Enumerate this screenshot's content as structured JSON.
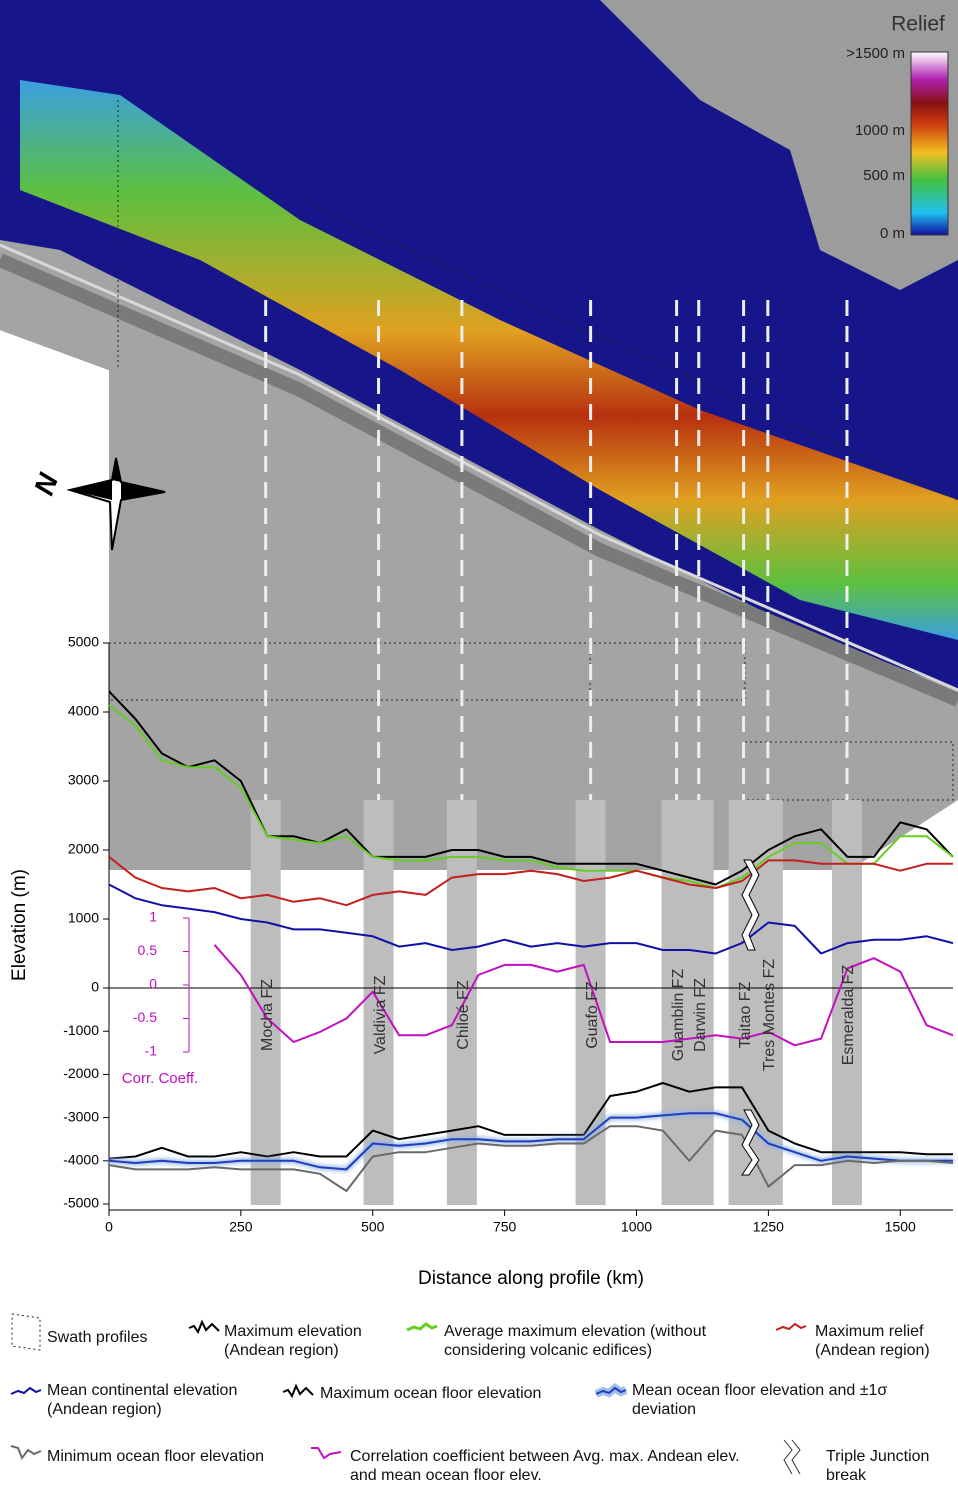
{
  "map": {
    "title": "Relief",
    "colorbar_labels": [
      ">1500 m",
      "1000 m",
      "500 m",
      "0 m"
    ],
    "north": "N"
  },
  "legend_extra": [
    "Swath profiles",
    "Triple Junction break"
  ],
  "chart_data": [
    {
      "type": "line",
      "ylabel": "Elevation (m)",
      "y2label": "Corr. Coeff.",
      "xlim": [
        0,
        1600
      ],
      "ylim": [
        0,
        5000
      ],
      "yticks": [
        0,
        1000,
        2000,
        3000,
        4000,
        5000
      ],
      "y2lim": [
        -1,
        1
      ],
      "y2ticks": [
        1,
        0.5,
        0,
        -0.5,
        -1
      ],
      "x": [
        0,
        50,
        100,
        150,
        200,
        250,
        300,
        350,
        400,
        450,
        500,
        550,
        600,
        650,
        700,
        750,
        800,
        850,
        900,
        950,
        1000,
        1050,
        1100,
        1150,
        1200,
        1250,
        1300,
        1350,
        1400,
        1450,
        1500,
        1550,
        1600
      ],
      "series": [
        {
          "name": "Maximum elevation (Andean region)",
          "color": "#000000",
          "values": [
            4300,
            3900,
            3400,
            3200,
            3300,
            3000,
            2200,
            2200,
            2100,
            2300,
            1900,
            1900,
            1900,
            2000,
            2000,
            1900,
            1900,
            1800,
            1800,
            1800,
            1800,
            1700,
            1600,
            1500,
            1700,
            2000,
            2200,
            2300,
            1900,
            1900,
            2400,
            2300,
            1900
          ]
        },
        {
          "name": "Average maximum elevation (without considering volcanic edifices)",
          "color": "#66cc22",
          "values": [
            4100,
            3800,
            3300,
            3200,
            3200,
            2900,
            2200,
            2150,
            2100,
            2200,
            1900,
            1850,
            1850,
            1900,
            1900,
            1850,
            1850,
            1750,
            1700,
            1700,
            1700,
            1600,
            1550,
            1450,
            1600,
            1900,
            2100,
            2100,
            1800,
            1800,
            2200,
            2200,
            1900
          ]
        },
        {
          "name": "Maximum relief (Andean region)",
          "color": "#c41e1e",
          "values": [
            1900,
            1600,
            1450,
            1400,
            1450,
            1300,
            1350,
            1250,
            1300,
            1200,
            1350,
            1400,
            1350,
            1600,
            1650,
            1650,
            1700,
            1650,
            1550,
            1600,
            1700,
            1600,
            1500,
            1450,
            1550,
            1850,
            1850,
            1800,
            1800,
            1800,
            1700,
            1800,
            1800
          ]
        },
        {
          "name": "Mean continental elevation (Andean region)",
          "color": "#1010a8",
          "values": [
            1500,
            1300,
            1200,
            1150,
            1100,
            1000,
            950,
            850,
            850,
            800,
            750,
            600,
            650,
            550,
            600,
            700,
            600,
            650,
            600,
            650,
            650,
            550,
            550,
            500,
            650,
            950,
            900,
            500,
            650,
            700,
            700,
            750,
            650
          ]
        },
        {
          "name": "Correlation coefficient between Avg. max. Andean elev. and mean ocean floor elev.",
          "color": "#c010c0",
          "axis": "y2",
          "values": [
            null,
            null,
            null,
            null,
            0.6,
            0.15,
            -0.5,
            -0.85,
            -0.7,
            -0.5,
            -0.1,
            -0.75,
            -0.75,
            -0.6,
            0.15,
            0.3,
            0.3,
            0.2,
            0.3,
            -0.85,
            -0.85,
            -0.85,
            -0.8,
            -0.75,
            -0.8,
            -0.7,
            -0.9,
            -0.8,
            0.25,
            0.4,
            0.2,
            -0.6,
            -0.75
          ]
        }
      ]
    },
    {
      "type": "line",
      "xlabel": "Distance along profile (km)",
      "xlim": [
        0,
        1600
      ],
      "xticks": [
        0,
        250,
        500,
        750,
        1000,
        1250,
        1500
      ],
      "ylim": [
        -5000,
        0
      ],
      "yticks": [
        -1000,
        -2000,
        -3000,
        -4000,
        -5000
      ],
      "x": [
        0,
        50,
        100,
        150,
        200,
        250,
        300,
        350,
        400,
        450,
        500,
        550,
        600,
        650,
        700,
        750,
        800,
        850,
        900,
        950,
        1000,
        1050,
        1100,
        1150,
        1200,
        1250,
        1300,
        1350,
        1400,
        1450,
        1500,
        1550,
        1600
      ],
      "series": [
        {
          "name": "Maximum ocean floor elevation",
          "color": "#000000",
          "values": [
            -3950,
            -3900,
            -3700,
            -3900,
            -3900,
            -3800,
            -3900,
            -3800,
            -3900,
            -3900,
            -3300,
            -3500,
            -3400,
            -3300,
            -3200,
            -3400,
            -3400,
            -3400,
            -3400,
            -2500,
            -2400,
            -2200,
            -2400,
            -2300,
            -2300,
            -3300,
            -3600,
            -3800,
            -3800,
            -3800,
            -3800,
            -3850,
            -3850
          ]
        },
        {
          "name": "Mean ocean floor elevation and ±1σ deviation",
          "color": "#1f3fbf",
          "values": [
            -4000,
            -4050,
            -4000,
            -4050,
            -4050,
            -4000,
            -4000,
            -4000,
            -4150,
            -4200,
            -3600,
            -3650,
            -3600,
            -3500,
            -3500,
            -3550,
            -3550,
            -3500,
            -3500,
            -3000,
            -3000,
            -2950,
            -2900,
            -2900,
            -3050,
            -3600,
            -3800,
            -4000,
            -3900,
            -3950,
            -4000,
            -4000,
            -4000
          ]
        },
        {
          "name": "Minimum ocean floor elevation",
          "color": "#6a6a6a",
          "values": [
            -4100,
            -4200,
            -4200,
            -4200,
            -4150,
            -4200,
            -4200,
            -4200,
            -4300,
            -4700,
            -3900,
            -3800,
            -3800,
            -3700,
            -3600,
            -3650,
            -3650,
            -3600,
            -3600,
            -3200,
            -3200,
            -3300,
            -4000,
            -3300,
            -3400,
            -4600,
            -4100,
            -4100,
            -4000,
            -4050,
            -4000,
            -4000,
            -4050
          ]
        }
      ],
      "fracture_zones": [
        {
          "label": "Mocha FZ",
          "x": 297
        },
        {
          "label": "Valdivia FZ",
          "x": 511
        },
        {
          "label": "Chiloé FZ",
          "x": 669
        },
        {
          "label": "Guafo FZ",
          "x": 913
        },
        {
          "label": "Guamblin FZ",
          "x": 1076
        },
        {
          "label": "Darwin FZ",
          "x": 1118
        },
        {
          "label": "Taitao FZ",
          "x": 1203
        },
        {
          "label": "Tres Montes FZ",
          "x": 1249
        },
        {
          "label": "Esmeralda FZ",
          "x": 1399
        }
      ]
    }
  ]
}
